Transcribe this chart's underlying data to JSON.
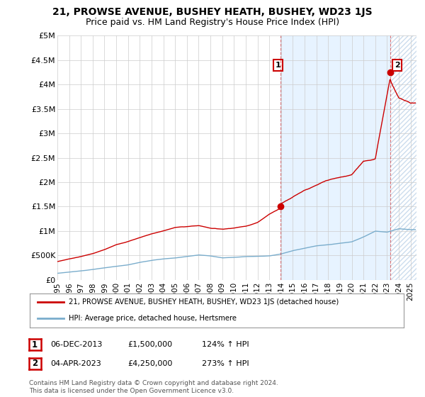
{
  "title": "21, PROWSE AVENUE, BUSHEY HEATH, BUSHEY, WD23 1JS",
  "subtitle": "Price paid vs. HM Land Registry's House Price Index (HPI)",
  "title_fontsize": 10,
  "subtitle_fontsize": 9,
  "xlim_start": 1995.0,
  "xlim_end": 2025.5,
  "ylim_min": 0,
  "ylim_max": 5000000,
  "yticks": [
    0,
    500000,
    1000000,
    1500000,
    2000000,
    2500000,
    3000000,
    3500000,
    4000000,
    4500000,
    5000000
  ],
  "ytick_labels": [
    "£0",
    "£500K",
    "£1M",
    "£1.5M",
    "£2M",
    "£2.5M",
    "£3M",
    "£3.5M",
    "£4M",
    "£4.5M",
    "£5M"
  ],
  "xticks": [
    1995,
    1996,
    1997,
    1998,
    1999,
    2000,
    2001,
    2002,
    2003,
    2004,
    2005,
    2006,
    2007,
    2008,
    2009,
    2010,
    2011,
    2012,
    2013,
    2014,
    2015,
    2016,
    2017,
    2018,
    2019,
    2020,
    2021,
    2022,
    2023,
    2024,
    2025
  ],
  "house_color": "#cc0000",
  "hpi_color": "#7aadcc",
  "sale1_x": 2013.92,
  "sale1_y": 1500000,
  "sale2_x": 2023.25,
  "sale2_y": 4250000,
  "legend_house": "21, PROWSE AVENUE, BUSHEY HEATH, BUSHEY, WD23 1JS (detached house)",
  "legend_hpi": "HPI: Average price, detached house, Hertsmere",
  "annotation1_label": "1",
  "annotation2_label": "2",
  "table_row1": [
    "1",
    "06-DEC-2013",
    "£1,500,000",
    "124% ↑ HPI"
  ],
  "table_row2": [
    "2",
    "04-APR-2023",
    "£4,250,000",
    "273% ↑ HPI"
  ],
  "footer": "Contains HM Land Registry data © Crown copyright and database right 2024.\nThis data is licensed under the Open Government Licence v3.0.",
  "background_color": "#ffffff",
  "grid_color": "#cccccc",
  "shade_color": "#ddeeff",
  "hatch_color": "#ccddee"
}
